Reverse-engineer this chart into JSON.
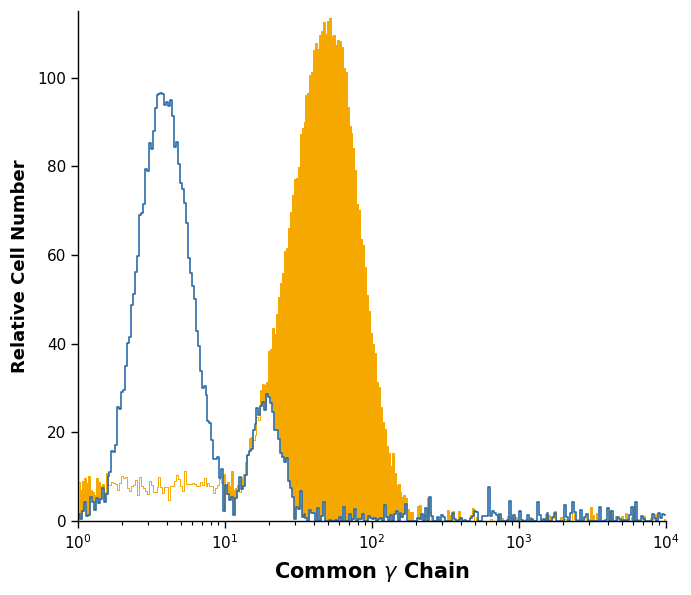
{
  "title": "",
  "xlabel": "Common γ Chain",
  "ylabel": "Relative Cell Number",
  "xlim_log": [
    1,
    10000
  ],
  "ylim": [
    0,
    115
  ],
  "yticks": [
    0,
    20,
    40,
    60,
    80,
    100
  ],
  "blue_color": "#2b6ca8",
  "orange_color": "#f5a800",
  "background_color": "#ffffff",
  "figsize": [
    6.91,
    5.95
  ],
  "dpi": 100
}
